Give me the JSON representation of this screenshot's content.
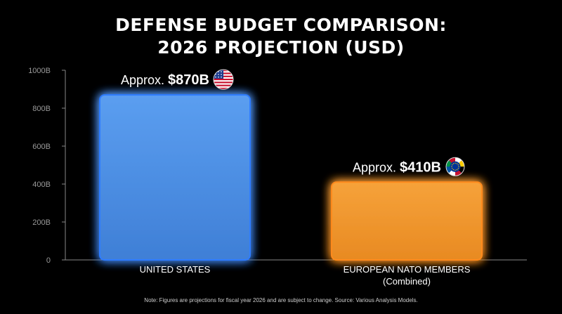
{
  "colors": {
    "background": "#000000",
    "us_bar": "#4a8fe0",
    "us_glow": "#2f7bff",
    "eu_bar": "#f0962e",
    "eu_glow": "#ff8a1a",
    "axis": "#888888"
  },
  "chart_data": {
    "type": "bar",
    "title_lines": [
      "DEFENSE BUDGET COMPARISON:",
      "2026 PROJECTION (USD)"
    ],
    "xlabel": "",
    "ylabel": "",
    "ylim": [
      0,
      1000
    ],
    "y_ticks": [
      0,
      200,
      400,
      600,
      800,
      1000
    ],
    "y_tick_labels": [
      "0",
      "200B",
      "400B",
      "600B",
      "800B",
      "1000B"
    ],
    "grid": false,
    "categories": [
      "UNITED STATES",
      "EUROPEAN NATO MEMBERS"
    ],
    "category_sublabels": [
      "",
      "(Combined)"
    ],
    "values": [
      870,
      410
    ],
    "annotations": [
      {
        "prefix": "Approx.",
        "value": "$870B",
        "icon": "us-flag-icon"
      },
      {
        "prefix": "Approx.",
        "value": "$410B",
        "icon": "eu-nato-flags-icon"
      }
    ]
  },
  "footnote": "Note: Figures are projections for fiscal year 2026 and are subject to change. Source: Various Analysis Models."
}
